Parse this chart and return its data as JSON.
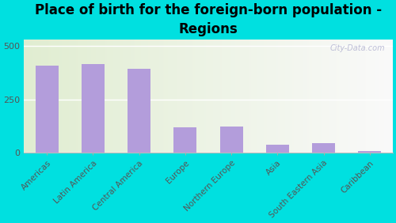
{
  "categories": [
    "Americas",
    "Latin America",
    "Central America",
    "Europe",
    "Northern Europe",
    "Asia",
    "South Eastern Asia",
    "Caribbean"
  ],
  "values": [
    410,
    415,
    395,
    120,
    125,
    40,
    45,
    8
  ],
  "bar_color": "#b39ddb",
  "background_outer": "#00e0e0",
  "title": "Place of birth for the foreign-born population -\nRegions",
  "title_fontsize": 12,
  "yticks": [
    0,
    250,
    500
  ],
  "ylim": [
    0,
    530
  ],
  "watermark": "City-Data.com"
}
